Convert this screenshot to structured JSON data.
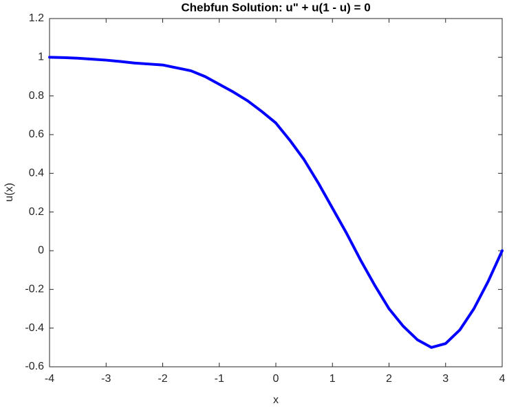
{
  "chart_data": {
    "type": "line",
    "title": "Chebfun Solution: u\" + u(1 - u) = 0",
    "xlabel": "x",
    "ylabel": "u(x)",
    "x": [
      -4,
      -3.75,
      -3.5,
      -3.25,
      -3,
      -2.75,
      -2.5,
      -2.25,
      -2,
      -1.75,
      -1.5,
      -1.25,
      -1,
      -0.75,
      -0.5,
      -0.25,
      0,
      0.25,
      0.5,
      0.75,
      1,
      1.25,
      1.5,
      1.75,
      2,
      2.25,
      2.5,
      2.75,
      3,
      3.25,
      3.5,
      3.75,
      4
    ],
    "series": [
      {
        "name": "u",
        "color": "#0000ff",
        "values": [
          1.0,
          0.998,
          0.995,
          0.99,
          0.985,
          0.978,
          0.97,
          0.965,
          0.96,
          0.945,
          0.93,
          0.9,
          0.86,
          0.82,
          0.775,
          0.72,
          0.66,
          0.57,
          0.47,
          0.35,
          0.22,
          0.09,
          -0.05,
          -0.18,
          -0.3,
          -0.39,
          -0.46,
          -0.5,
          -0.48,
          -0.41,
          -0.3,
          -0.16,
          0.0
        ]
      }
    ],
    "xlim": [
      -4,
      4
    ],
    "xticks": [
      -4,
      -3,
      -2,
      -1,
      0,
      1,
      2,
      3,
      4
    ],
    "ylim": [
      -0.6,
      1.2
    ],
    "yticks": [
      -0.6,
      -0.4,
      -0.2,
      0,
      0.2,
      0.4,
      0.6,
      0.8,
      1,
      1.2
    ],
    "grid": false
  }
}
